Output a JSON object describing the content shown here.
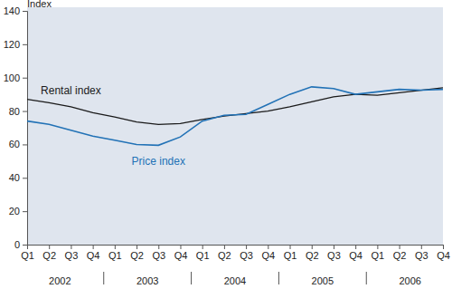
{
  "chart_data": {
    "type": "line",
    "y_label": "Index",
    "categories": [
      "Q1",
      "Q2",
      "Q3",
      "Q4",
      "Q1",
      "Q2",
      "Q3",
      "Q4",
      "Q1",
      "Q2",
      "Q3",
      "Q4",
      "Q1",
      "Q2",
      "Q3",
      "Q4",
      "Q1",
      "Q2",
      "Q3",
      "Q4"
    ],
    "groups": [
      "2002",
      "2003",
      "2004",
      "2005",
      "2006"
    ],
    "series": [
      {
        "name": "Rental index",
        "color": "#1a1a1a",
        "values": [
          87,
          85,
          82.5,
          79,
          76.5,
          73.5,
          72,
          72.5,
          75,
          77,
          78.5,
          80,
          82.5,
          85.5,
          88.5,
          90,
          89.5,
          91,
          92.5,
          94
        ]
      },
      {
        "name": "Price index",
        "color": "#2272b6",
        "values": [
          74,
          72,
          68.5,
          65,
          62.5,
          60,
          59.5,
          64.5,
          74,
          77.5,
          78,
          84,
          90,
          94.5,
          93.5,
          90,
          91.5,
          93,
          92.5,
          93
        ]
      }
    ],
    "ylim": [
      0,
      140
    ],
    "yticks": [
      0,
      20,
      40,
      60,
      80,
      100,
      120,
      140
    ],
    "grid": false
  }
}
